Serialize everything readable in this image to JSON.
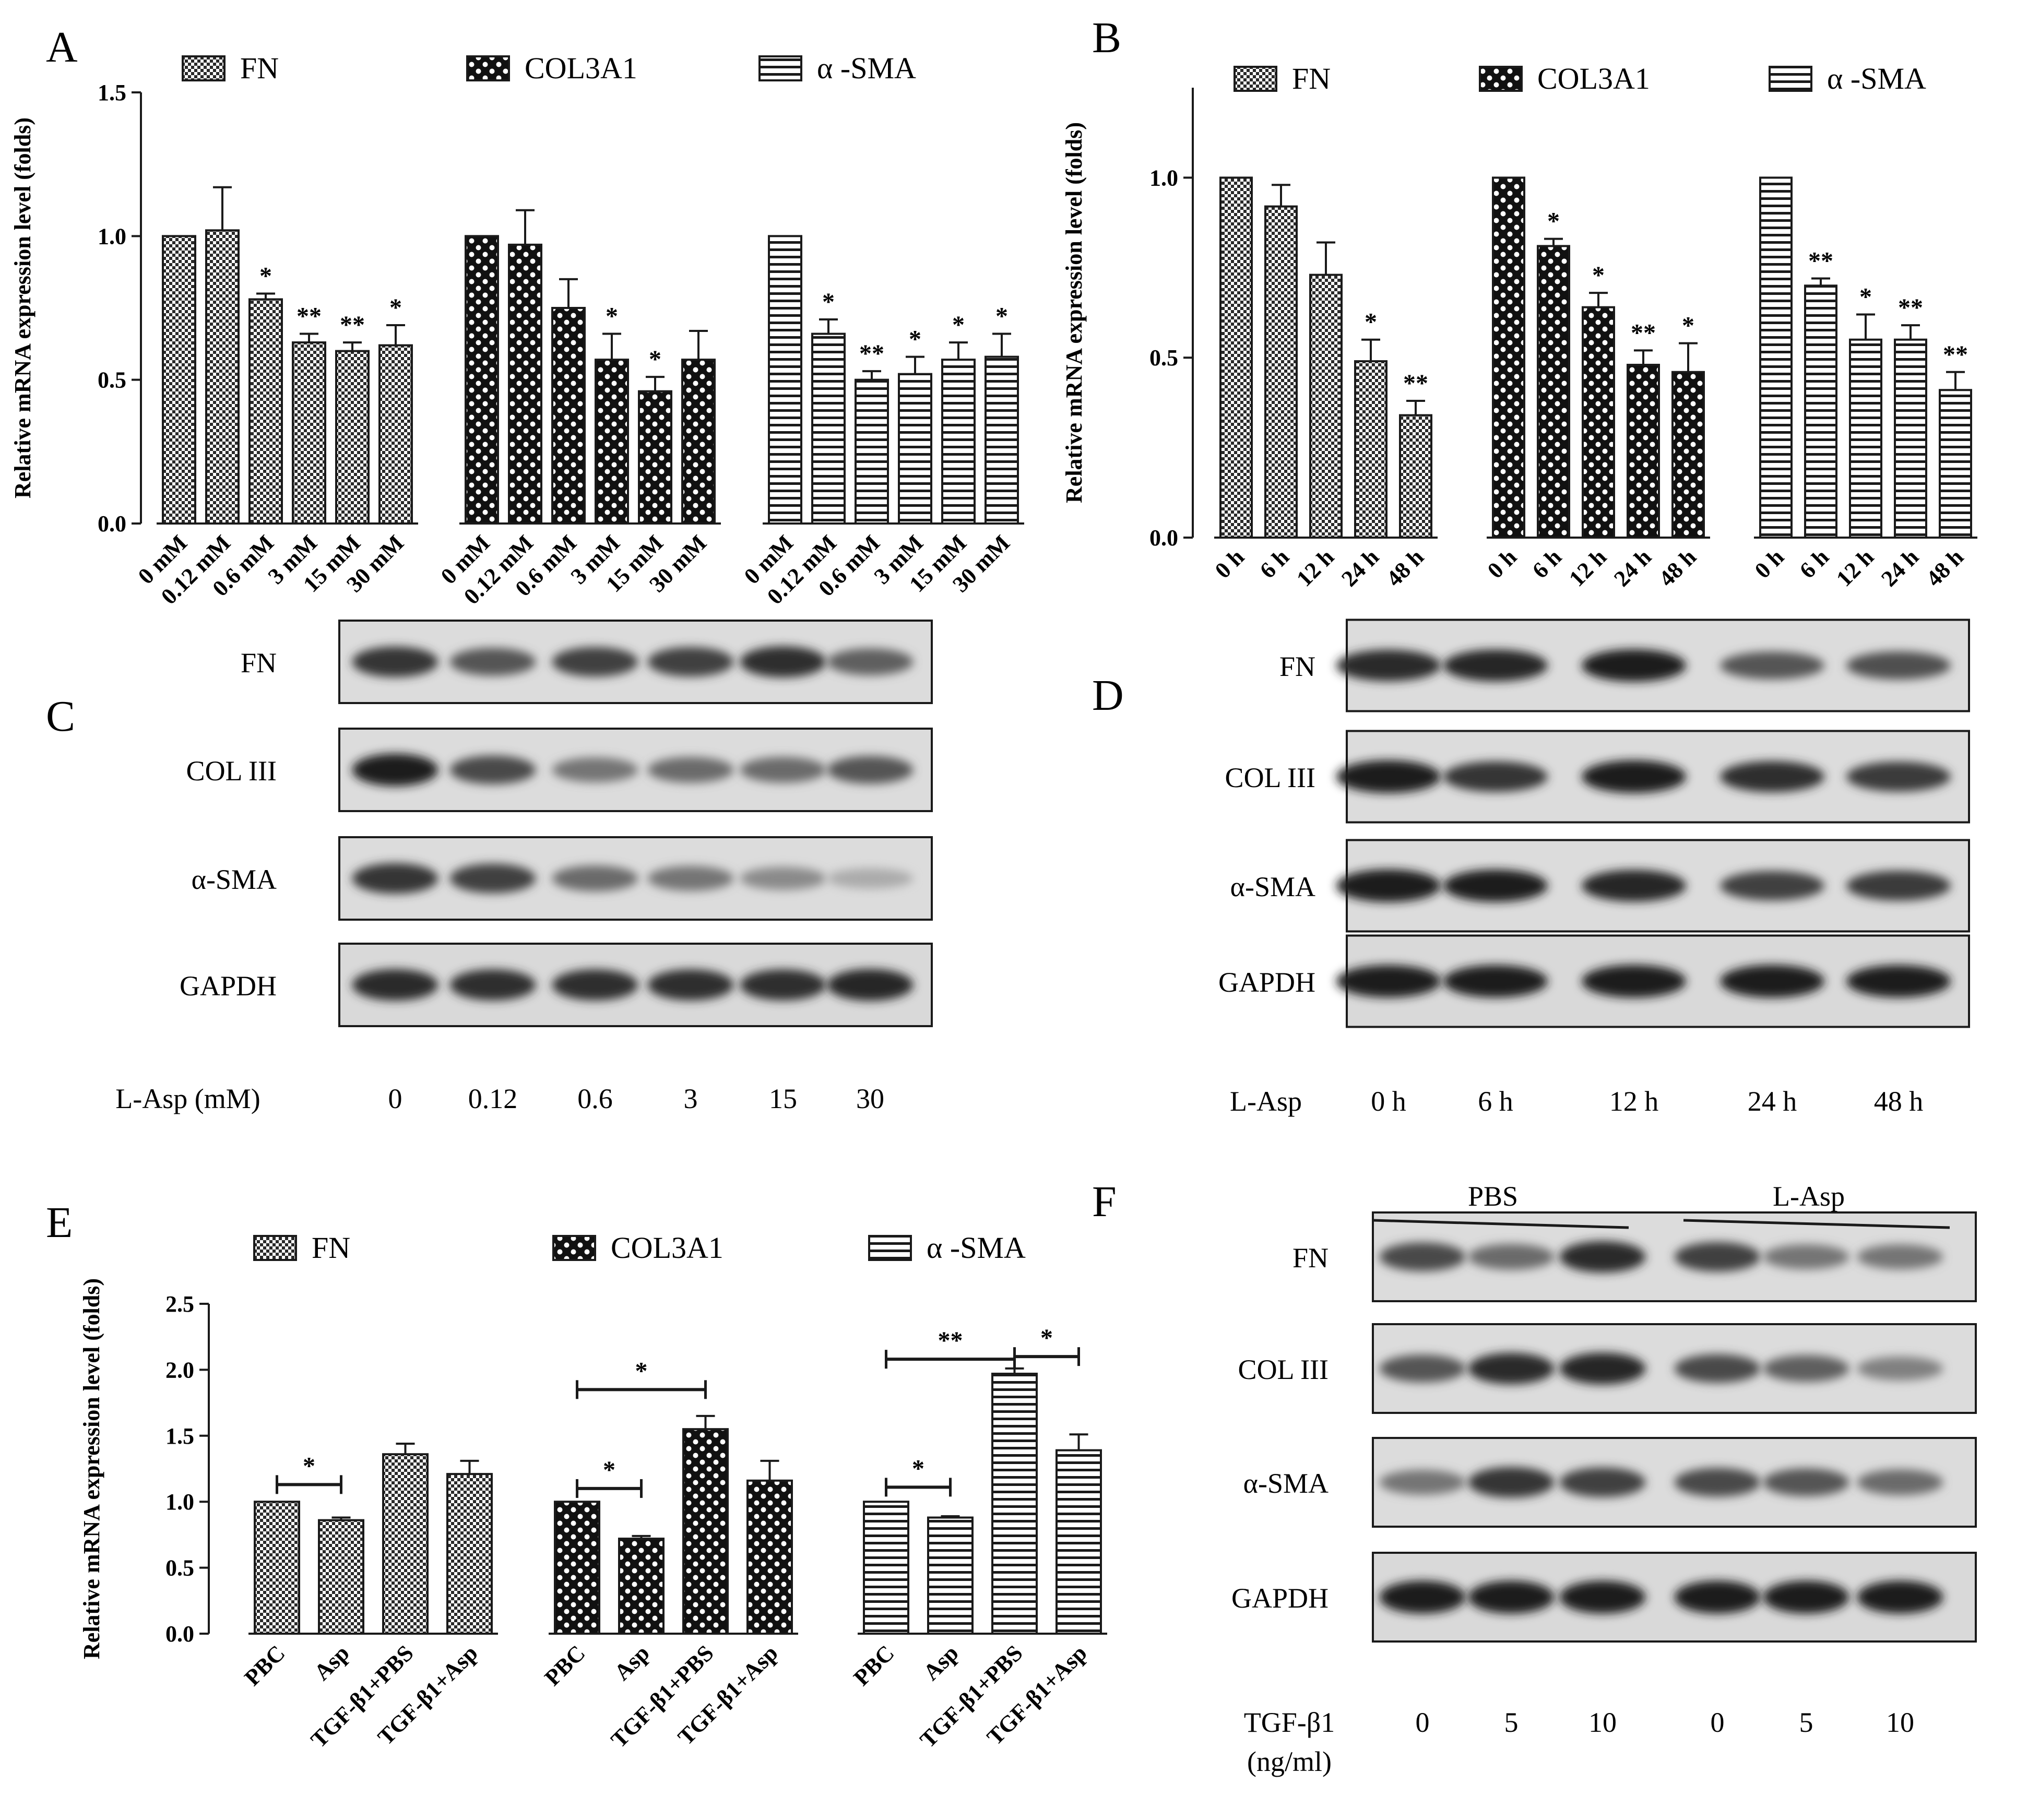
{
  "panels": {
    "A": "A",
    "B": "B",
    "C": "C",
    "D": "D",
    "E": "E",
    "F": "F"
  },
  "legend": {
    "fn": "FN",
    "col": "COL3A1",
    "sma": "α -SMA"
  },
  "chart_data": [
    {
      "id": "A",
      "type": "bar",
      "ylabel": "Relative mRNA expression level (folds)",
      "ylim": [
        0,
        1.5
      ],
      "yticks": [
        "0.0",
        "0.5",
        "1.0",
        "1.5"
      ],
      "categories": [
        "0 mM",
        "0.12 mM",
        "0.6 mM",
        "3 mM",
        "15 mM",
        "30 mM"
      ],
      "series": [
        {
          "name": "FN",
          "pattern": "fn",
          "values": [
            1.0,
            1.02,
            0.78,
            0.63,
            0.6,
            0.62
          ],
          "errors": [
            0,
            0.15,
            0.02,
            0.03,
            0.03,
            0.07
          ],
          "sig": [
            "",
            "",
            "*",
            "**",
            "**",
            "*"
          ]
        },
        {
          "name": "COL3A1",
          "pattern": "col",
          "values": [
            1.0,
            0.97,
            0.75,
            0.57,
            0.46,
            0.57
          ],
          "errors": [
            0,
            0.12,
            0.1,
            0.09,
            0.05,
            0.1
          ],
          "sig": [
            "",
            "",
            "",
            "*",
            "*",
            ""
          ]
        },
        {
          "name": "α -SMA",
          "pattern": "sma",
          "values": [
            1.0,
            0.66,
            0.5,
            0.52,
            0.57,
            0.58
          ],
          "errors": [
            0,
            0.05,
            0.03,
            0.06,
            0.06,
            0.08
          ],
          "sig": [
            "",
            "*",
            "**",
            "*",
            "*",
            "*"
          ]
        }
      ]
    },
    {
      "id": "B",
      "type": "bar",
      "ylabel": "Relative mRNA expression level (folds)",
      "ylim": [
        0,
        1.25
      ],
      "yticks": [
        "0.0",
        "0.5",
        "1.0"
      ],
      "categories": [
        "0 h",
        "6 h",
        "12 h",
        "24 h",
        "48 h"
      ],
      "series": [
        {
          "name": "FN",
          "pattern": "fn",
          "values": [
            1.0,
            0.92,
            0.73,
            0.49,
            0.34
          ],
          "errors": [
            0,
            0.06,
            0.09,
            0.06,
            0.04
          ],
          "sig": [
            "",
            "",
            "",
            "*",
            "**"
          ]
        },
        {
          "name": "COL3A1",
          "pattern": "col",
          "values": [
            1.0,
            0.81,
            0.64,
            0.48,
            0.46
          ],
          "errors": [
            0,
            0.02,
            0.04,
            0.04,
            0.08
          ],
          "sig": [
            "",
            "*",
            "*",
            "**",
            "*"
          ]
        },
        {
          "name": "α -SMA",
          "pattern": "sma",
          "values": [
            1.0,
            0.7,
            0.55,
            0.55,
            0.41
          ],
          "errors": [
            0,
            0.02,
            0.07,
            0.04,
            0.05
          ],
          "sig": [
            "",
            "**",
            "*",
            "**",
            "**"
          ]
        }
      ]
    },
    {
      "id": "E",
      "type": "bar",
      "ylabel": "Relative mRNA expression level (folds)",
      "ylim": [
        0,
        2.5
      ],
      "yticks": [
        "0.0",
        "0.5",
        "1.0",
        "1.5",
        "2.0",
        "2.5"
      ],
      "categories": [
        "PBC",
        "Asp",
        "TGF-β1+PBS",
        "TGF-β1+Asp"
      ],
      "series": [
        {
          "name": "FN",
          "pattern": "fn",
          "values": [
            1.0,
            0.86,
            1.36,
            1.21
          ],
          "errors": [
            0,
            0.02,
            0.08,
            0.1
          ]
        },
        {
          "name": "COL3A1",
          "pattern": "col",
          "values": [
            1.0,
            0.72,
            1.55,
            1.16
          ],
          "errors": [
            0,
            0.02,
            0.1,
            0.15
          ]
        },
        {
          "name": "α -SMA",
          "pattern": "sma",
          "values": [
            1.0,
            0.88,
            1.97,
            1.39
          ],
          "errors": [
            0,
            0.01,
            0.04,
            0.12
          ]
        }
      ],
      "brackets": [
        {
          "group": 0,
          "from": 0,
          "to": 1,
          "y": 1.13,
          "label": "*"
        },
        {
          "group": 1,
          "from": 0,
          "to": 1,
          "y": 1.1,
          "label": "*"
        },
        {
          "group": 1,
          "from": 0,
          "to": 2,
          "y": 1.85,
          "label": "*"
        },
        {
          "group": 2,
          "from": 0,
          "to": 1,
          "y": 1.11,
          "label": "*"
        },
        {
          "group": 2,
          "from": 0,
          "to": 2,
          "y": 2.08,
          "label": "**"
        },
        {
          "group": 2,
          "from": 2,
          "to": 3,
          "y": 2.1,
          "label": "*"
        }
      ]
    }
  ],
  "blots": {
    "C": {
      "rows": [
        "FN",
        "COL III",
        "α-SMA",
        "GAPDH"
      ],
      "x_title": "L-Asp (mM)",
      "lanes": [
        "0",
        "0.12",
        "0.6",
        "3",
        "15",
        "30"
      ],
      "intensity": [
        [
          0.85,
          0.7,
          0.8,
          0.8,
          0.88,
          0.65
        ],
        [
          0.95,
          0.75,
          0.55,
          0.6,
          0.6,
          0.7
        ],
        [
          0.85,
          0.8,
          0.6,
          0.55,
          0.45,
          0.3
        ],
        [
          0.9,
          0.88,
          0.88,
          0.88,
          0.88,
          0.92
        ]
      ]
    },
    "D": {
      "rows": [
        "FN",
        "COL III",
        "α-SMA",
        "GAPDH"
      ],
      "x_title": "L-Asp",
      "lanes": [
        "0 h",
        "6 h",
        "12 h",
        "24 h",
        "48 h"
      ],
      "intensity": [
        [
          0.9,
          0.92,
          0.95,
          0.7,
          0.72
        ],
        [
          0.97,
          0.85,
          0.97,
          0.88,
          0.82
        ],
        [
          0.97,
          0.95,
          0.92,
          0.8,
          0.82
        ],
        [
          0.95,
          0.95,
          0.97,
          0.97,
          0.95
        ]
      ]
    },
    "F": {
      "groups": [
        "PBS",
        "L-Asp"
      ],
      "rows": [
        "FN",
        "COL III",
        "α-SMA",
        "GAPDH"
      ],
      "x_title": "TGF-β1",
      "x_unit": "(ng/ml)",
      "lanes": [
        "0",
        "5",
        "10",
        "0",
        "5",
        "10"
      ],
      "intensity": [
        [
          0.75,
          0.6,
          0.9,
          0.8,
          0.55,
          0.55
        ],
        [
          0.7,
          0.9,
          0.92,
          0.75,
          0.65,
          0.5
        ],
        [
          0.55,
          0.85,
          0.8,
          0.75,
          0.7,
          0.6
        ],
        [
          0.97,
          0.97,
          0.97,
          0.97,
          0.97,
          0.97
        ]
      ]
    }
  }
}
